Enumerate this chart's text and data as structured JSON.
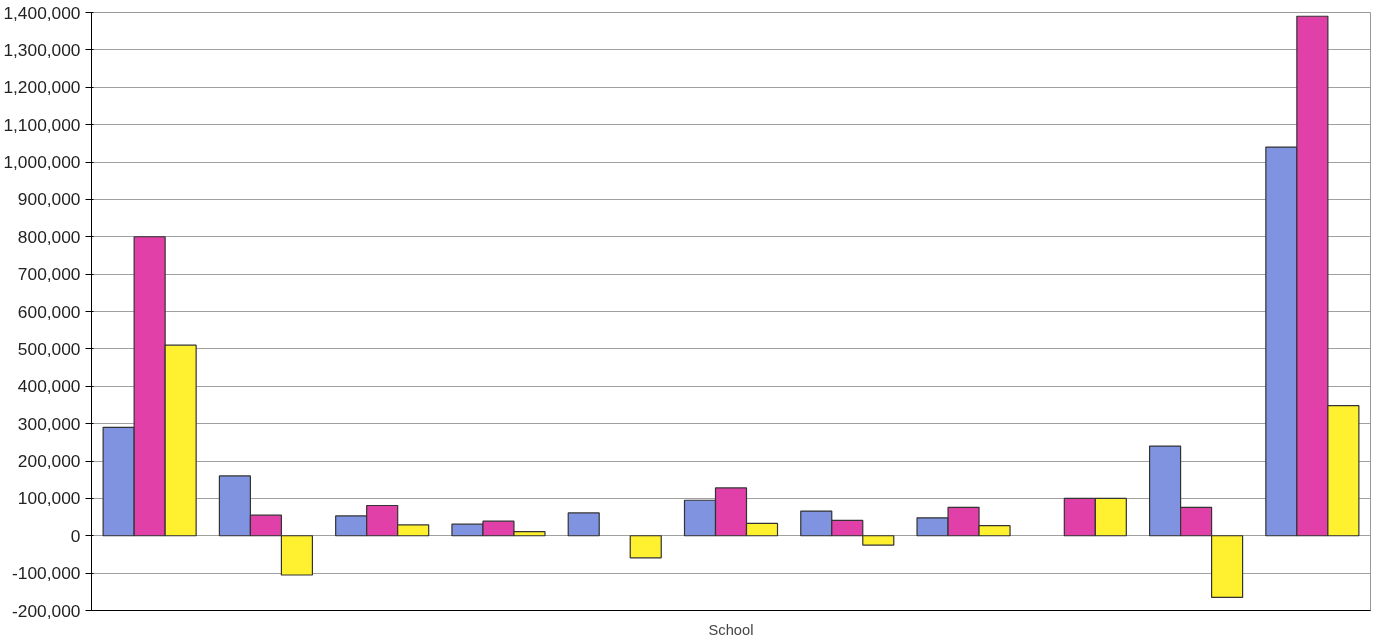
{
  "chart_data": {
    "type": "bar",
    "categories": [
      null,
      null,
      null,
      null,
      null,
      "School",
      null,
      null,
      null,
      null,
      null
    ],
    "series": [
      {
        "color": "#8093e0",
        "values": [
          290000,
          160000,
          53000,
          31000,
          61000,
          95000,
          66000,
          48000,
          null,
          240000,
          1040000
        ]
      },
      {
        "color": "#e040a8",
        "values": [
          800000,
          55000,
          81000,
          39000,
          null,
          128000,
          41000,
          76000,
          100000,
          76000,
          1390000
        ]
      },
      {
        "color": "#fff030",
        "values": [
          510000,
          -105000,
          29000,
          11000,
          -59000,
          33000,
          -25000,
          27000,
          100000,
          -165000,
          348000
        ]
      }
    ],
    "ylim": [
      -200000,
      1400000
    ],
    "yticks": [
      {
        "value": -200000,
        "label": "-200,000"
      },
      {
        "value": -100000,
        "label": "-100,000"
      },
      0,
      {
        "value": 100000,
        "label": "100,000"
      },
      {
        "value": 200000,
        "label": "200,000"
      },
      {
        "value": 300000,
        "label": "300,000"
      },
      {
        "value": 400000,
        "label": "400,000"
      },
      {
        "value": 500000,
        "label": "500,000"
      },
      {
        "value": 600000,
        "label": "600,000"
      },
      {
        "value": 700000,
        "label": "700,000"
      },
      {
        "value": 800000,
        "label": "800,000"
      },
      {
        "value": 900000,
        "label": "900,000"
      },
      {
        "value": 1000000,
        "label": "1,000,000"
      },
      {
        "value": 1100000,
        "label": "1,100,000"
      },
      {
        "value": 1200000,
        "label": "1,200,000"
      },
      {
        "value": 1300000,
        "label": "1,300,000"
      },
      {
        "value": 1400000,
        "label": "1,400,000"
      }
    ],
    "grid": "y"
  }
}
